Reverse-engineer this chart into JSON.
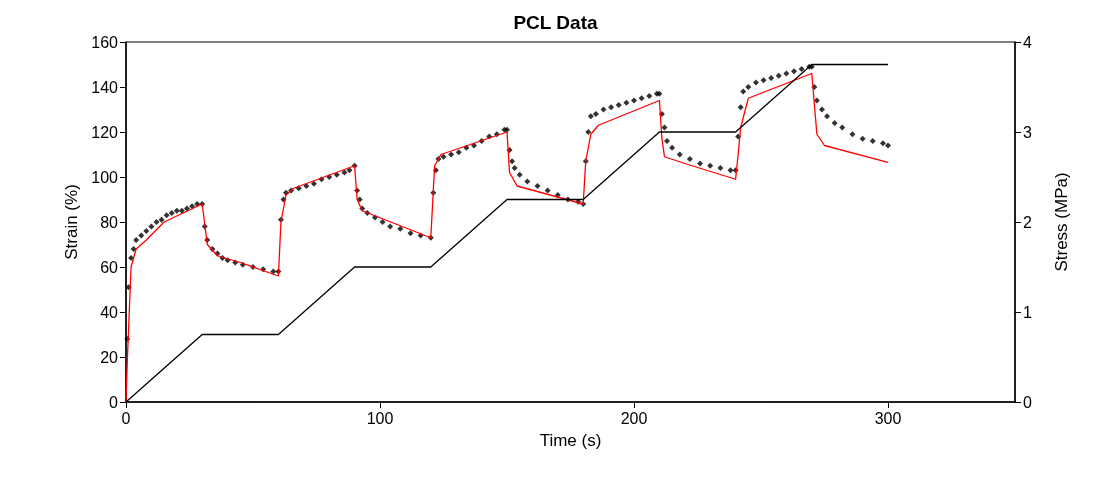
{
  "chart_data": {
    "type": "line",
    "title": "PCL Data",
    "xlabel": "Time (s)",
    "ylabel": "Strain (%)",
    "y2label": "Stress (MPa)",
    "xlim": [
      0,
      350
    ],
    "xticks": [
      0,
      100,
      200,
      300
    ],
    "ylim": [
      0,
      160
    ],
    "yticks": [
      0,
      20,
      40,
      60,
      80,
      100,
      120,
      140,
      160
    ],
    "y2lim": [
      0,
      4
    ],
    "y2ticks": [
      0,
      1,
      2,
      3,
      4
    ],
    "grid": false,
    "series": [
      {
        "type": "scatter",
        "marker": "diamond",
        "color": "#000000",
        "x": [
          0.5,
          1,
          2,
          3,
          4,
          6,
          8,
          10,
          12,
          14,
          16,
          18,
          20,
          22,
          24,
          26,
          28,
          30,
          31,
          32,
          34,
          36,
          38,
          40,
          43,
          46,
          50,
          54,
          58,
          60,
          61,
          62,
          63,
          65,
          68,
          71,
          74,
          77,
          80,
          83,
          86,
          88,
          90,
          91,
          92,
          93,
          95,
          98,
          101,
          104,
          108,
          112,
          116,
          120,
          121,
          122,
          123,
          125,
          128,
          131,
          134,
          137,
          140,
          143,
          146,
          149,
          150,
          151,
          152,
          153,
          155,
          158,
          162,
          166,
          170,
          174,
          178,
          180,
          181,
          182,
          183,
          185,
          188,
          191,
          194,
          197,
          200,
          203,
          206,
          209,
          210,
          211,
          212,
          213,
          215,
          218,
          222,
          226,
          230,
          234,
          238,
          240,
          241,
          242,
          243,
          245,
          248,
          251,
          254,
          257,
          260,
          263,
          266,
          269,
          270,
          271,
          272,
          274,
          276,
          279,
          282,
          286,
          290,
          294,
          298,
          300
        ],
        "values": [
          28,
          51,
          64,
          68,
          72,
          74,
          76,
          78,
          80,
          81,
          83,
          84,
          85,
          85,
          86,
          87,
          88,
          88,
          78,
          72,
          68,
          66,
          64,
          63,
          62,
          61,
          60,
          59,
          58,
          58,
          81,
          90,
          93,
          94,
          95,
          96,
          97,
          99,
          100,
          101,
          102,
          103,
          105,
          94,
          90,
          86,
          84,
          82,
          80,
          78,
          77,
          75,
          74,
          73,
          93,
          103,
          108,
          109,
          110,
          111,
          113,
          114,
          116,
          118,
          119,
          121,
          121,
          112,
          107,
          104,
          101,
          98,
          96,
          94,
          92,
          90,
          89,
          88,
          107,
          120,
          127,
          128,
          130,
          131,
          132,
          133,
          134,
          135,
          136,
          137,
          137,
          128,
          122,
          116,
          113,
          110,
          108,
          106,
          105,
          104,
          103,
          103,
          118,
          131,
          138,
          140,
          142,
          143,
          144,
          145,
          146,
          147,
          148,
          149,
          149,
          140,
          134,
          130,
          127,
          124,
          122,
          119,
          117,
          116,
          115,
          114
        ]
      },
      {
        "marker": "none",
        "color": "#ff0000",
        "x": [
          0,
          0.5,
          2,
          4,
          8,
          15,
          30,
          32,
          36,
          45,
          60,
          61,
          63,
          66,
          90,
          91,
          93,
          120,
          121.5,
          124,
          150,
          151,
          154,
          180,
          181,
          183,
          186,
          210,
          211,
          212,
          220,
          240,
          241,
          242,
          245,
          270,
          272,
          275,
          300
        ],
        "values": [
          0,
          18,
          60,
          68,
          72,
          80,
          88,
          70,
          65,
          62,
          56,
          80,
          92,
          95,
          105,
          90,
          85,
          73,
          105,
          110,
          120,
          102,
          96,
          88,
          107,
          119,
          123,
          134,
          117,
          109,
          106,
          99,
          110,
          122,
          135,
          146,
          119,
          114,
          106.5
        ]
      },
      {
        "marker": "none",
        "color": "#000000",
        "axis": "y2",
        "x": [
          0,
          30,
          60,
          90,
          120,
          150,
          180,
          210,
          240,
          270,
          300
        ],
        "values": [
          0,
          0.75,
          0.75,
          1.5,
          1.5,
          2.25,
          2.25,
          3,
          3,
          3.75,
          3.75
        ]
      }
    ]
  }
}
